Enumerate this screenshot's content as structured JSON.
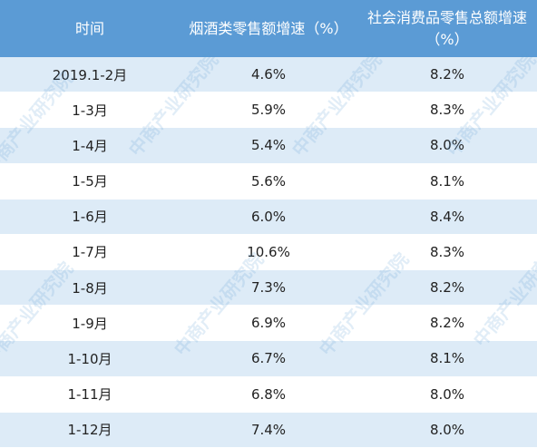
{
  "table": {
    "header": [
      "时间",
      "烟酒类零售额增速（%）",
      "社会消费品零售总额增速（%）"
    ],
    "rows": [
      [
        "2019.1-2月",
        "4.6%",
        "8.2%"
      ],
      [
        "1-3月",
        "5.9%",
        "8.3%"
      ],
      [
        "1-4月",
        "5.4%",
        "8.0%"
      ],
      [
        "1-5月",
        "5.6%",
        "8.1%"
      ],
      [
        "1-6月",
        "6.0%",
        "8.4%"
      ],
      [
        "1-7月",
        "10.6%",
        "8.3%"
      ],
      [
        "1-8月",
        "7.3%",
        "8.2%"
      ],
      [
        "1-9月",
        "6.9%",
        "8.2%"
      ],
      [
        "1-10月",
        "6.7%",
        "8.1%"
      ],
      [
        "1-11月",
        "6.8%",
        "8.0%"
      ],
      [
        "1-12月",
        "7.4%",
        "8.0%"
      ]
    ]
  },
  "watermark": "中商产业研究院"
}
